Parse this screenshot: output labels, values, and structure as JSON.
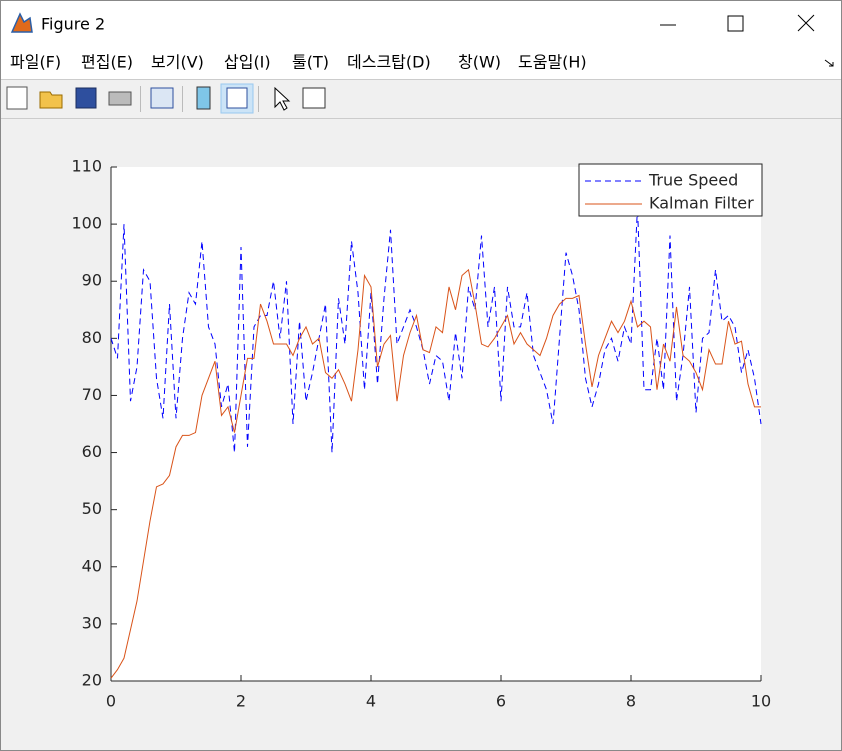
{
  "window": {
    "title": "Figure 2",
    "menu": [
      "파일(F)",
      "편집(E)",
      "보기(V)",
      "삽입(I)",
      "툴(T)",
      "데스크탑(D)",
      "창(W)",
      "도움말(H)"
    ]
  },
  "chart_data": {
    "type": "line",
    "x": [
      0,
      0.1,
      0.2,
      0.3,
      0.4,
      0.5,
      0.6,
      0.7,
      0.8,
      0.9,
      1,
      1.1,
      1.2,
      1.3,
      1.4,
      1.5,
      1.6,
      1.7,
      1.8,
      1.9,
      2,
      2.1,
      2.2,
      2.3,
      2.4,
      2.5,
      2.6,
      2.7,
      2.8,
      2.9,
      3,
      3.1,
      3.2,
      3.3,
      3.4,
      3.5,
      3.6,
      3.7,
      3.8,
      3.9,
      4,
      4.1,
      4.2,
      4.3,
      4.4,
      4.5,
      4.6,
      4.7,
      4.8,
      4.9,
      5,
      5.1,
      5.2,
      5.3,
      5.4,
      5.5,
      5.6,
      5.7,
      5.8,
      5.9,
      6,
      6.1,
      6.2,
      6.3,
      6.4,
      6.5,
      6.6,
      6.7,
      6.8,
      6.9,
      7,
      7.1,
      7.2,
      7.3,
      7.4,
      7.5,
      7.6,
      7.7,
      7.8,
      7.9,
      8,
      8.1,
      8.2,
      8.3,
      8.4,
      8.5,
      8.6,
      8.7,
      8.8,
      8.9,
      9,
      9.1,
      9.2,
      9.3,
      9.4,
      9.5,
      9.6,
      9.7,
      9.8,
      9.9,
      10
    ],
    "series": [
      {
        "name": "True Speed",
        "color": "#0000ff",
        "linestyle": "dashed",
        "values": [
          80,
          76.5,
          100,
          69,
          75,
          92,
          90,
          73,
          66,
          86,
          66,
          80,
          88,
          86,
          97,
          82,
          79,
          68,
          72,
          60,
          96,
          61,
          82,
          84,
          84,
          90,
          80,
          90,
          65,
          83,
          69,
          74,
          80,
          86,
          60,
          87,
          79,
          97,
          88,
          71,
          88,
          72,
          87,
          99,
          79,
          82,
          85,
          82,
          78,
          72,
          77,
          76,
          69,
          81,
          73,
          89,
          85,
          98,
          82,
          89,
          69,
          89,
          82,
          82,
          88,
          77,
          74,
          71,
          65,
          80,
          95,
          91,
          85,
          73,
          68,
          72,
          78,
          80,
          76,
          82,
          79,
          103,
          71,
          71,
          80,
          71,
          98,
          69,
          77,
          89,
          67,
          80,
          81,
          92,
          83,
          84,
          82,
          74,
          78,
          73,
          65
        ]
      },
      {
        "name": "Kalman Filter",
        "color": "#d95319",
        "linestyle": "solid",
        "values": [
          20.5,
          22,
          24,
          29,
          34,
          41,
          48,
          54,
          54.5,
          56,
          61,
          63,
          63,
          63.5,
          70,
          73,
          76,
          66.5,
          68,
          63.5,
          70,
          76.5,
          76.5,
          86,
          83,
          79,
          79,
          79,
          77,
          80,
          82,
          79,
          80,
          74,
          73,
          74.5,
          72,
          69,
          78,
          91,
          89,
          75,
          79,
          80.5,
          69,
          77,
          81,
          84,
          78,
          77.5,
          82,
          81,
          89,
          85,
          91,
          92,
          86,
          79,
          78.5,
          80,
          82,
          84,
          79,
          81,
          79,
          78,
          77,
          80,
          84,
          86,
          87,
          87,
          87.5,
          79,
          71.5,
          77,
          80,
          83,
          81,
          83,
          86.5,
          82,
          83,
          82,
          71,
          79,
          76,
          85.5,
          77,
          76,
          74,
          71,
          78,
          75.5,
          75.5,
          83,
          79,
          79.5,
          72,
          68,
          68
        ]
      }
    ],
    "xlim": [
      0,
      10
    ],
    "xticks": [
      0,
      2,
      4,
      6,
      8,
      10
    ],
    "ylim": [
      20,
      110
    ],
    "yticks": [
      20,
      30,
      40,
      50,
      60,
      70,
      80,
      90,
      100,
      110
    ],
    "legend": "northeast"
  }
}
